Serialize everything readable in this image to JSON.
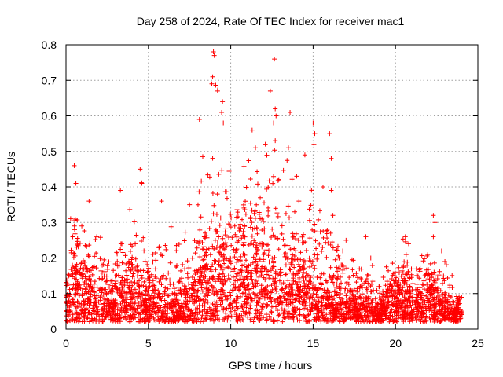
{
  "chart_data": {
    "type": "scatter",
    "title": "Day 258 of 2024, Rate Of TEC Index for receiver mac1",
    "xlabel": "GPS time / hours",
    "ylabel": "ROTI / TECUs",
    "xlim": [
      0,
      25
    ],
    "ylim": [
      0,
      0.8
    ],
    "xticks": [
      "0",
      "5",
      "10",
      "15",
      "20",
      "25"
    ],
    "yticks": [
      "0",
      "0.1",
      "0.2",
      "0.3",
      "0.4",
      "0.5",
      "0.6",
      "0.7",
      "0.8"
    ],
    "grid": true,
    "marker": "+",
    "color": "#ff0000",
    "series": [
      {
        "name": "ROTI",
        "envelope_hours": [
          0,
          0.5,
          1,
          1.5,
          2,
          2.5,
          3,
          3.5,
          4,
          4.5,
          5,
          5.5,
          6,
          6.5,
          7,
          7.5,
          8,
          8.5,
          9,
          9.5,
          10,
          10.5,
          11,
          11.5,
          12,
          12.5,
          13,
          13.5,
          14,
          14.5,
          15,
          15.5,
          16,
          16.5,
          17,
          17.5,
          18,
          18.5,
          19,
          19.5,
          20,
          20.5,
          21,
          21.5,
          22,
          22.5,
          23,
          23.5,
          24
        ],
        "envelope_max": [
          0.22,
          0.45,
          0.3,
          0.35,
          0.28,
          0.25,
          0.3,
          0.38,
          0.35,
          0.45,
          0.3,
          0.38,
          0.28,
          0.3,
          0.27,
          0.32,
          0.35,
          0.6,
          0.78,
          0.65,
          0.4,
          0.42,
          0.55,
          0.45,
          0.5,
          0.76,
          0.5,
          0.6,
          0.4,
          0.45,
          0.58,
          0.4,
          0.55,
          0.3,
          0.25,
          0.2,
          0.25,
          0.2,
          0.15,
          0.18,
          0.2,
          0.26,
          0.2,
          0.22,
          0.32,
          0.2,
          0.22,
          0.15,
          0.12
        ],
        "envelope_typical": [
          0.1,
          0.15,
          0.12,
          0.11,
          0.1,
          0.08,
          0.09,
          0.1,
          0.1,
          0.12,
          0.08,
          0.08,
          0.07,
          0.06,
          0.07,
          0.1,
          0.15,
          0.2,
          0.22,
          0.2,
          0.2,
          0.22,
          0.2,
          0.22,
          0.2,
          0.18,
          0.15,
          0.15,
          0.15,
          0.15,
          0.12,
          0.1,
          0.1,
          0.08,
          0.07,
          0.06,
          0.06,
          0.06,
          0.05,
          0.07,
          0.1,
          0.12,
          0.1,
          0.09,
          0.1,
          0.08,
          0.06,
          0.05,
          0.04
        ],
        "points": [
          [
            8.95,
            0.78
          ],
          [
            9.0,
            0.77
          ],
          [
            8.9,
            0.71
          ],
          [
            8.85,
            0.69
          ],
          [
            9.2,
            0.67
          ],
          [
            9.5,
            0.64
          ],
          [
            9.55,
            0.58
          ],
          [
            9.45,
            0.61
          ],
          [
            12.65,
            0.76
          ],
          [
            12.4,
            0.67
          ],
          [
            12.7,
            0.62
          ],
          [
            12.75,
            0.6
          ],
          [
            12.6,
            0.58
          ],
          [
            12.7,
            0.53
          ],
          [
            13.6,
            0.61
          ],
          [
            15.0,
            0.58
          ],
          [
            15.1,
            0.55
          ],
          [
            15.05,
            0.52
          ],
          [
            16.0,
            0.55
          ],
          [
            16.1,
            0.48
          ],
          [
            11.3,
            0.56
          ],
          [
            11.5,
            0.51
          ],
          [
            8.1,
            0.59
          ],
          [
            13.5,
            0.51
          ],
          [
            14.0,
            0.43
          ],
          [
            14.5,
            0.49
          ],
          [
            15.6,
            0.4
          ],
          [
            16.2,
            0.32
          ],
          [
            22.3,
            0.32
          ],
          [
            22.4,
            0.3
          ],
          [
            22.3,
            0.26
          ],
          [
            20.6,
            0.26
          ],
          [
            0.5,
            0.46
          ],
          [
            0.6,
            0.41
          ],
          [
            4.5,
            0.45
          ],
          [
            4.6,
            0.41
          ],
          [
            3.3,
            0.39
          ],
          [
            5.8,
            0.36
          ],
          [
            7.5,
            0.35
          ],
          [
            1.4,
            0.36
          ],
          [
            18.2,
            0.26
          ],
          [
            18.5,
            0.2
          ],
          [
            23.0,
            0.19
          ],
          [
            22.8,
            0.22
          ],
          [
            17.0,
            0.25
          ],
          [
            16.8,
            0.22
          ],
          [
            19.0,
            0.12
          ],
          [
            20.8,
            0.24
          ]
        ]
      }
    ]
  }
}
